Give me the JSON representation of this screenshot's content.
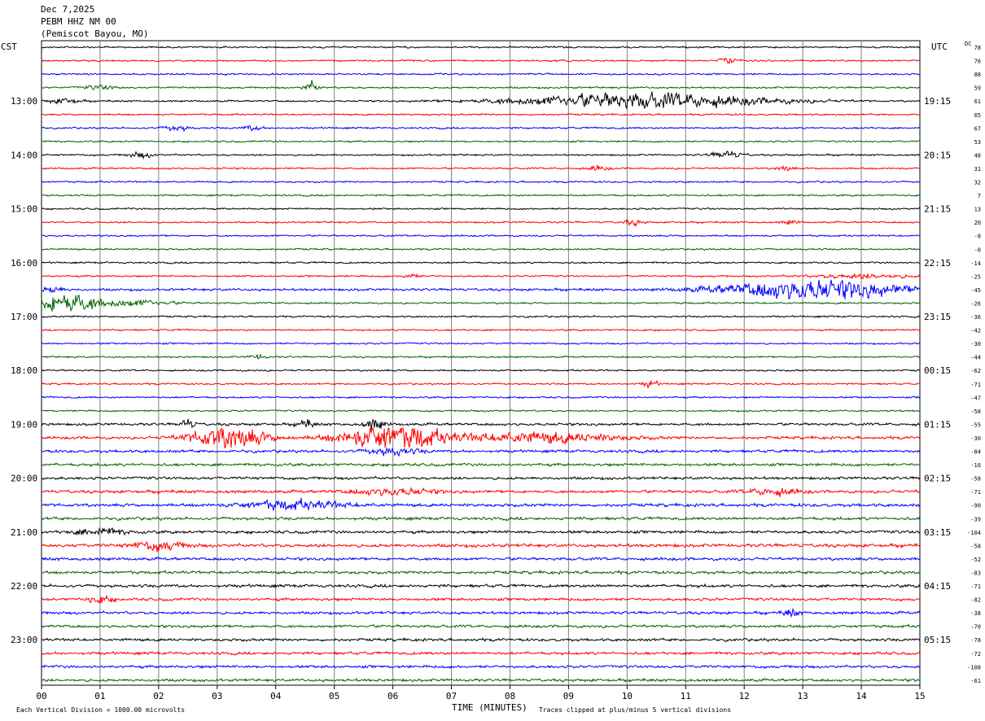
{
  "header": {
    "date": "Dec 7,2025",
    "station": "PEBM HHZ NM 00",
    "location": "(Pemiscot Bayou, MO)"
  },
  "left_zone_label": "CST",
  "right_zone_label": "UTC",
  "dc_label": "DC",
  "footer": {
    "vertical_division": "Each Vertical Division = 1000.00 microvolts",
    "clipping": "Traces clipped at plus/minus 5 vertical divisions"
  },
  "colors": {
    "black": "#000000",
    "red": "#ff0000",
    "blue": "#0000ff",
    "green": "#006400",
    "grid": "#808080"
  },
  "chart_data": {
    "type": "line",
    "xlabel": "TIME (MINUTES)",
    "x_ticks": [
      "00",
      "01",
      "02",
      "03",
      "04",
      "05",
      "06",
      "07",
      "08",
      "09",
      "10",
      "11",
      "12",
      "13",
      "14",
      "15"
    ],
    "xlim": [
      0,
      15
    ],
    "left_time_labels": [
      "13:00",
      "14:00",
      "15:00",
      "16:00",
      "17:00",
      "18:00",
      "19:00",
      "20:00",
      "21:00",
      "22:00",
      "23:00"
    ],
    "right_time_labels": [
      "19:15",
      "20:15",
      "21:15",
      "22:15",
      "23:15",
      "00:15",
      "01:15",
      "02:15",
      "03:15",
      "04:15",
      "05:15"
    ],
    "trace_count": 48,
    "trace_color_cycle": [
      "black",
      "red",
      "blue",
      "green"
    ],
    "dc_offsets": [
      "78",
      "76",
      "88",
      "59",
      "61",
      "65",
      "67",
      "53",
      "48",
      "31",
      "32",
      "7",
      "13",
      "20",
      "-8",
      "-0",
      "-14",
      "-25",
      "-45",
      "-26",
      "-36",
      "-42",
      "-30",
      "-44",
      "-62",
      "-71",
      "-47",
      "-58",
      "-55",
      "-30",
      "-84",
      "-16",
      "-58",
      "-71",
      "-90",
      "-39",
      "-104",
      "-58",
      "-52",
      "-83",
      "-71",
      "-82",
      "-38",
      "-70",
      "-78",
      "-72",
      "-108",
      "-61"
    ],
    "noise_levels": [
      1,
      1,
      1,
      1,
      1,
      1,
      1,
      1,
      1,
      1,
      1,
      1,
      1,
      1,
      1,
      1,
      1,
      1,
      1.4,
      1,
      1,
      1,
      1,
      1,
      1,
      1,
      1,
      1,
      1.5,
      1.6,
      1.6,
      1.6,
      1.6,
      1.7,
      1.8,
      1.7,
      1.7,
      1.9,
      1.7,
      1.7,
      1.7,
      1.6,
      1.6,
      1.6,
      1.6,
      1.6,
      1.6,
      1.6
    ],
    "events": [
      {
        "trace": 1,
        "minute": 11.7,
        "amplitude": 4,
        "duration": 0.3
      },
      {
        "trace": 3,
        "minute": 4.6,
        "amplitude": 6,
        "duration": 0.3
      },
      {
        "trace": 3,
        "minute": 1.0,
        "amplitude": 2.5,
        "duration": 0.6
      },
      {
        "trace": 4,
        "minute": 10.2,
        "amplitude": 9,
        "duration": 5.0
      },
      {
        "trace": 4,
        "minute": 0.4,
        "amplitude": 3,
        "duration": 0.6
      },
      {
        "trace": 6,
        "minute": 2.3,
        "amplitude": 3,
        "duration": 0.5
      },
      {
        "trace": 6,
        "minute": 3.6,
        "amplitude": 2.5,
        "duration": 0.4
      },
      {
        "trace": 8,
        "minute": 11.7,
        "amplitude": 4,
        "duration": 0.6
      },
      {
        "trace": 8,
        "minute": 1.7,
        "amplitude": 3,
        "duration": 0.5
      },
      {
        "trace": 9,
        "minute": 9.5,
        "amplitude": 3,
        "duration": 0.4
      },
      {
        "trace": 9,
        "minute": 12.7,
        "amplitude": 3,
        "duration": 0.3
      },
      {
        "trace": 13,
        "minute": 10.1,
        "amplitude": 3,
        "duration": 0.4
      },
      {
        "trace": 13,
        "minute": 12.8,
        "amplitude": 2.5,
        "duration": 0.3
      },
      {
        "trace": 17,
        "minute": 6.3,
        "amplitude": 3,
        "duration": 0.3
      },
      {
        "trace": 17,
        "minute": 14.0,
        "amplitude": 2.5,
        "duration": 2.0
      },
      {
        "trace": 18,
        "minute": 13.2,
        "amplitude": 12,
        "duration": 3.5
      },
      {
        "trace": 18,
        "minute": 0.2,
        "amplitude": 4,
        "duration": 0.4
      },
      {
        "trace": 19,
        "minute": 0.4,
        "amplitude": 13,
        "duration": 1.2
      },
      {
        "trace": 19,
        "minute": 1.5,
        "amplitude": 4,
        "duration": 1.5
      },
      {
        "trace": 23,
        "minute": 3.7,
        "amplitude": 3,
        "duration": 0.3
      },
      {
        "trace": 25,
        "minute": 10.4,
        "amplitude": 4,
        "duration": 0.3
      },
      {
        "trace": 28,
        "minute": 2.5,
        "amplitude": 5,
        "duration": 0.3
      },
      {
        "trace": 28,
        "minute": 4.5,
        "amplitude": 5,
        "duration": 0.3
      },
      {
        "trace": 28,
        "minute": 5.7,
        "amplitude": 6,
        "duration": 0.4
      },
      {
        "trace": 29,
        "minute": 3.2,
        "amplitude": 13,
        "duration": 1.5
      },
      {
        "trace": 29,
        "minute": 6.0,
        "amplitude": 16,
        "duration": 2.0
      },
      {
        "trace": 29,
        "minute": 8.5,
        "amplitude": 6,
        "duration": 3.0
      },
      {
        "trace": 30,
        "minute": 6.0,
        "amplitude": 4,
        "duration": 1.0
      },
      {
        "trace": 33,
        "minute": 6.0,
        "amplitude": 4,
        "duration": 1.5
      },
      {
        "trace": 33,
        "minute": 12.5,
        "amplitude": 4,
        "duration": 1.0
      },
      {
        "trace": 34,
        "minute": 4.3,
        "amplitude": 5,
        "duration": 2.0
      },
      {
        "trace": 36,
        "minute": 1.0,
        "amplitude": 4,
        "duration": 1.0
      },
      {
        "trace": 37,
        "minute": 2.0,
        "amplitude": 5,
        "duration": 1.0
      },
      {
        "trace": 41,
        "minute": 1.0,
        "amplitude": 4,
        "duration": 0.5
      },
      {
        "trace": 42,
        "minute": 12.8,
        "amplitude": 4,
        "duration": 0.3
      }
    ]
  }
}
